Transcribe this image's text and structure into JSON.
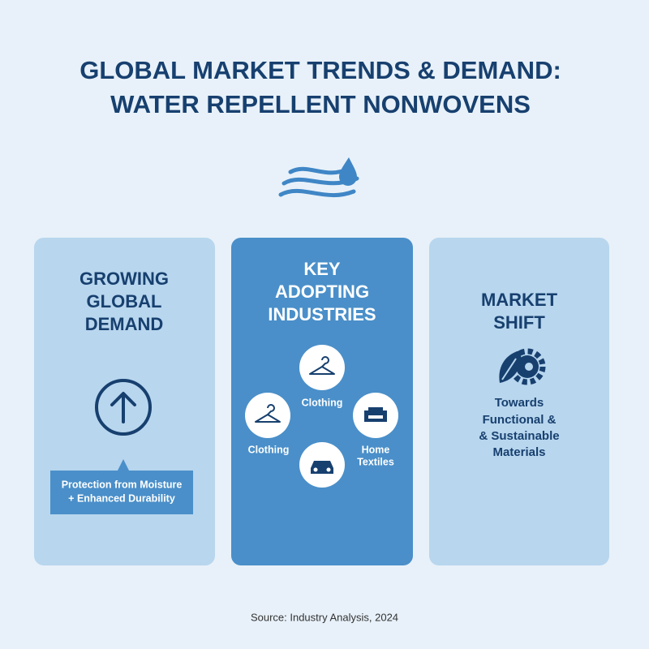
{
  "header": {
    "title_lines": [
      "GLOBAL MARKET TRENDS & DEMAND:",
      "WATER REPELLENT NONWOVENS"
    ]
  },
  "panels": [
    {
      "title_lines": [
        "GROWING",
        "GLOBAL",
        "DEMAND"
      ],
      "callout_lines": [
        "Protection from Moisture",
        "+ Enhanced Durability"
      ]
    },
    {
      "title_lines": [
        "KEY",
        "ADOPTING",
        "INDUSTRIES"
      ],
      "industries": [
        {
          "label_lines": [
            "Clothing"
          ]
        },
        {
          "label_lines": [
            "Clothing"
          ]
        },
        {
          "label_lines": [
            "Home",
            "Textiles"
          ]
        }
      ]
    },
    {
      "title_lines": [
        "MARKET",
        "SHIFT"
      ],
      "text_lines": [
        "Towards",
        "Functional &",
        "& Sustainable",
        "Materials"
      ]
    }
  ],
  "footer": {
    "source": "Source: Industry Analysis, 2024"
  }
}
